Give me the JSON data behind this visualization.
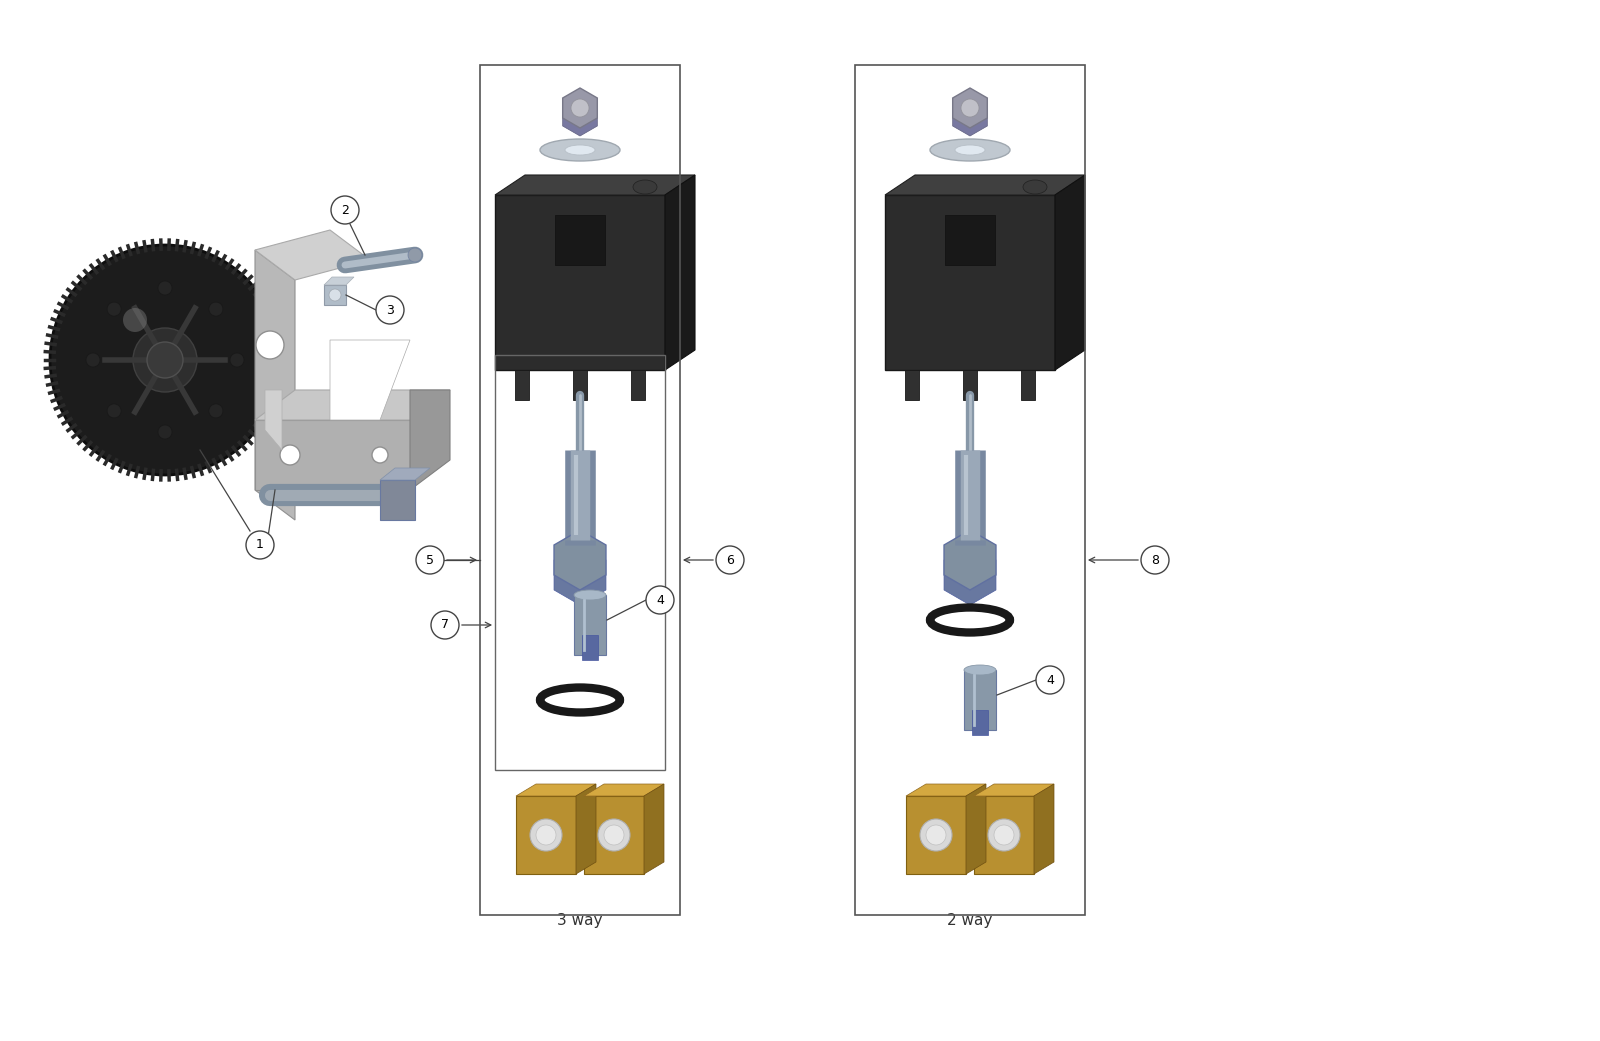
{
  "bg_color": "#ffffff",
  "fig_width": 16.0,
  "fig_height": 10.41,
  "labels": {
    "3way": "3 way",
    "2way": "2 way"
  },
  "colors": {
    "line_color": "#444444",
    "circle_bg": "#ffffff",
    "circle_border": "#444444",
    "box_outline": "#555555",
    "black_sol_front": "#2d2d2d",
    "black_sol_top": "#3e3e3e",
    "black_sol_right": "#1a1a1a",
    "gear_body": "#1c1c1c",
    "bracket_front": "#b0b0b0",
    "bracket_side": "#909090",
    "bracket_top": "#c8c8c8",
    "silver_stem": "#9aa0a8",
    "silver_stem_light": "#b8bec6",
    "silver_nut": "#a0a8b0",
    "oring": "#1a1a1a",
    "gold_front": "#b89030",
    "gold_top": "#d4a840",
    "gold_right": "#907020",
    "washer": "#b8bec6",
    "hex_nut": "#989ea8"
  }
}
